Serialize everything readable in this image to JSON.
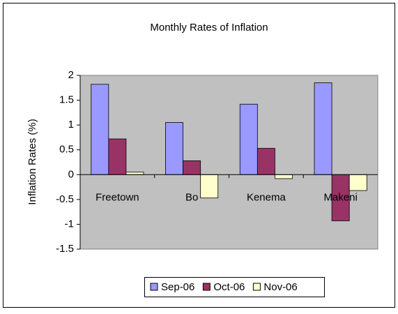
{
  "chart_data": {
    "type": "bar",
    "title": "Monthly Rates of Inflation",
    "y_label": "Inflation Rates (%)",
    "categories": [
      "Freetown",
      "Bo",
      "Kenema",
      "Makeni"
    ],
    "series": [
      {
        "name": "Sep-06",
        "color": "#9999ff",
        "values": [
          1.82,
          1.05,
          1.42,
          1.85
        ]
      },
      {
        "name": "Oct-06",
        "color": "#993366",
        "values": [
          0.72,
          0.28,
          0.53,
          -0.93
        ]
      },
      {
        "name": "Nov-06",
        "color": "#ffffcc",
        "values": [
          0.05,
          -0.47,
          -0.08,
          -0.32
        ]
      }
    ],
    "ylim": [
      -1.5,
      2
    ],
    "yticks": [
      -1.5,
      -1,
      -0.5,
      0,
      0.5,
      1,
      1.5,
      2
    ],
    "grid": false,
    "legend": "bottom"
  }
}
